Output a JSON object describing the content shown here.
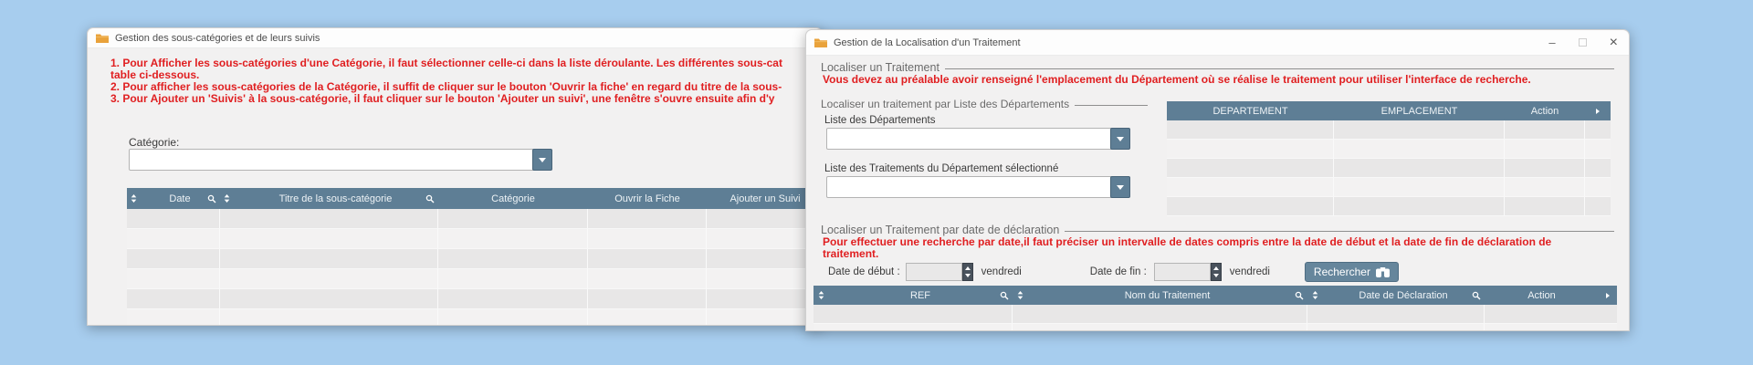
{
  "colors": {
    "background": "#a7cdee",
    "header_bar": "#5e7e95",
    "warning_red": "#e01f21",
    "button": "#66869c",
    "folder_icon": "#e9a23b"
  },
  "icons": {
    "window_icon": "folder-icon",
    "sort_icon": "up-down-arrows-icon",
    "search_icon": "magnifier-icon",
    "combo_icon": "chevron-down-icon",
    "spinner_icon": "up-down-spinner-icon",
    "search_button_icon": "binoculars-icon",
    "header_more_icon": "right-triangle-icon",
    "minimize_icon": "dash-icon",
    "maximize_icon": "square-icon",
    "close_icon": "x-icon"
  },
  "left_window": {
    "title": "Gestion des sous-catégories et de leurs suivis",
    "instructions": [
      "1. Pour Afficher les sous-catégories d'une Catégorie, il faut sélectionner celle-ci dans la liste déroulante. Les différentes sous-cat",
      "table ci-dessous.",
      "2. Pour afficher les sous-catégories de la Catégorie, il suffit de cliquer sur le bouton 'Ouvrir la fiche' en regard du titre de la sous-",
      "3. Pour Ajouter un 'Suivis' à la sous-catégorie, il faut cliquer sur le bouton 'Ajouter un suivi', une fenêtre s'ouvre ensuite afin d'y"
    ],
    "category": {
      "label": "Catégorie:",
      "value": ""
    },
    "table": {
      "columns": [
        "Date",
        "Titre de la sous-catégorie",
        "Catégorie",
        "Ouvrir la Fiche",
        "Ajouter un Suivi"
      ]
    }
  },
  "right_window": {
    "title": "Gestion de la Localisation d'un Traitement",
    "window_controls": {
      "minimize": "–",
      "close": "×"
    },
    "locate_group": {
      "label": "Localiser un Traitement",
      "warning": "Vous devez au préalable avoir renseigné l'emplacement du Département où se réalise le traitement pour utiliser l'interface de recherche."
    },
    "dept_group": {
      "label": "Localiser un traitement par Liste des Départements",
      "dept_list_label": "Liste des Départements",
      "dept_list_value": "",
      "treatments_list_label": "Liste des Traitements du Département sélectionné",
      "treatments_list_value": ""
    },
    "dept_table": {
      "columns": [
        "DEPARTEMENT",
        "EMPLACEMENT",
        "Action"
      ]
    },
    "date_group": {
      "label": "Localiser un Traitement par date de déclaration",
      "warning_lines": [
        "Pour effectuer une recherche par date,il faut préciser un intervalle de dates compris entre la date de début et la date de fin de déclaration de",
        "traitement."
      ],
      "start_label": "Date de début :",
      "start_value": "",
      "start_day": "vendredi",
      "end_label": "Date de fin :",
      "end_value": "",
      "end_day": "vendredi",
      "search_button": "Rechercher"
    },
    "results_table": {
      "columns": [
        "REF",
        "Nom du Traitement",
        "Date de Déclaration",
        "Action"
      ]
    }
  }
}
